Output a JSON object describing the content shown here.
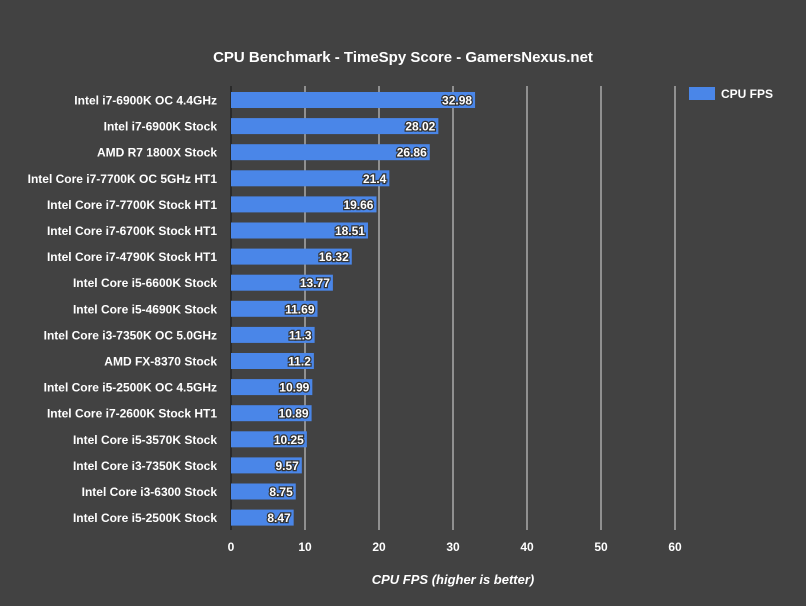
{
  "chart_data": {
    "type": "bar",
    "orientation": "horizontal",
    "title": "CPU Benchmark - TimeSpy Score - GamersNexus.net",
    "xlabel": "CPU FPS (higher is better)",
    "ylabel": "",
    "xlim": [
      0,
      60
    ],
    "xticks": [
      0,
      10,
      20,
      30,
      40,
      50,
      60
    ],
    "grid": true,
    "legend_position": "top-right",
    "categories": [
      "Intel i7-6900K OC 4.4GHz",
      "Intel i7-6900K Stock",
      "AMD R7 1800X Stock",
      "Intel Core i7-7700K OC 5GHz HT1",
      "Intel Core i7-7700K Stock HT1",
      "Intel Core i7-6700K Stock HT1",
      "Intel Core i7-4790K Stock HT1",
      "Intel Core i5-6600K Stock",
      "Intel Core i5-4690K Stock",
      "Intel Core i3-7350K OC 5.0GHz",
      "AMD FX-8370 Stock",
      "Intel Core i5-2500K OC 4.5GHz",
      "Intel Core i7-2600K Stock HT1",
      "Intel Core i5-3570K Stock",
      "Intel Core i3-7350K Stock",
      "Intel Core i3-6300 Stock",
      "Intel Core i5-2500K Stock"
    ],
    "series": [
      {
        "name": "CPU FPS",
        "color": "#4a86e8",
        "values": [
          32.98,
          28.02,
          26.86,
          21.4,
          19.66,
          18.51,
          16.32,
          13.77,
          11.69,
          11.3,
          11.2,
          10.99,
          10.89,
          10.25,
          9.57,
          8.75,
          8.47
        ]
      }
    ],
    "background": "#424242"
  }
}
